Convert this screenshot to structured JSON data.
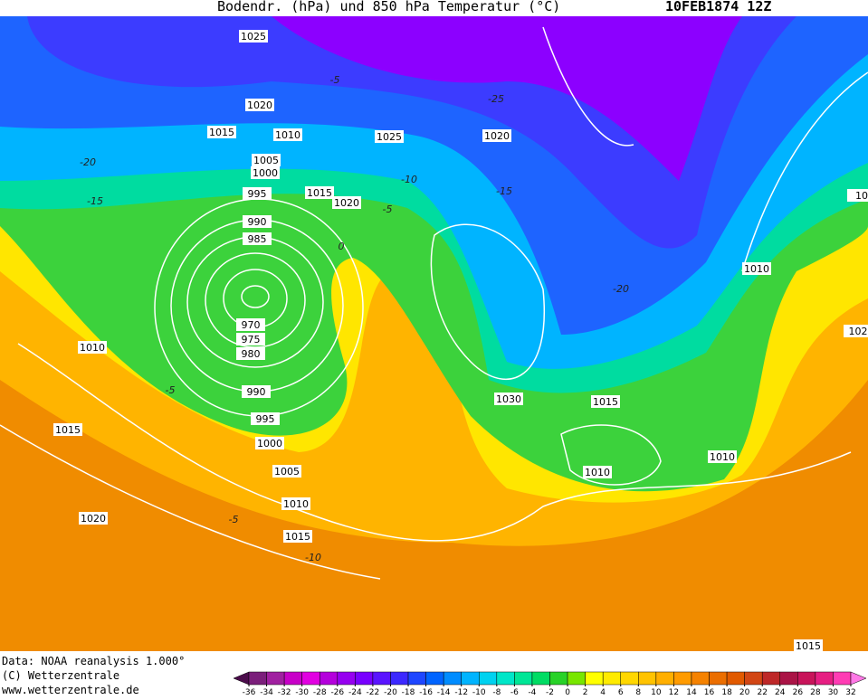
{
  "header": {
    "title": "Bodendr. (hPa) und 850 hPa Temperatur (°C)",
    "date": "10FEB1874 12Z"
  },
  "isobar_labels": [
    1025,
    1020,
    1015,
    1010,
    1025,
    1020,
    1005,
    1000,
    995,
    1015,
    1020,
    990,
    985,
    1010,
    970,
    975,
    980,
    1010,
    990,
    1030,
    1015,
    995,
    1015,
    1000,
    1010,
    1010,
    1005,
    1010,
    1020,
    1015,
    1015,
    102,
    10
  ],
  "temperature_labels": [
    "-5",
    "-20",
    "-15",
    "-10",
    "-15",
    "-5",
    "-20",
    "0",
    "-5",
    "-5",
    "-10",
    "-25"
  ],
  "footer": {
    "source": "Data: NOAA reanalysis 1.000°",
    "copyright": "(C) Wetterzentrale",
    "url": "www.wetterzentrale.de"
  },
  "colorbar": {
    "ticks": [
      -36,
      -34,
      -32,
      -30,
      -28,
      -26,
      -24,
      -22,
      -20,
      -18,
      -16,
      -14,
      -12,
      -10,
      -8,
      -6,
      -4,
      -2,
      0,
      2,
      4,
      6,
      8,
      10,
      12,
      14,
      16,
      18,
      20,
      22,
      24,
      26,
      28,
      30,
      32
    ],
    "colors": [
      "#4b0c4b",
      "#7b1f7b",
      "#a020a0",
      "#c800c8",
      "#e100e1",
      "#b400dc",
      "#9600f0",
      "#7800ff",
      "#5a14ff",
      "#3c28ff",
      "#1e46ff",
      "#0064ff",
      "#008cff",
      "#00b4ff",
      "#00d2f0",
      "#00e6c8",
      "#00e696",
      "#00dc64",
      "#28d228",
      "#78e600",
      "#ffff00",
      "#ffeb00",
      "#ffd700",
      "#ffc300",
      "#ffaf00",
      "#ff9b00",
      "#f58200",
      "#eb6e00",
      "#e15a00",
      "#d24614",
      "#be2828",
      "#aa1446",
      "#c8145a",
      "#e61e82",
      "#ff3cb4",
      "#ff78e6"
    ]
  }
}
